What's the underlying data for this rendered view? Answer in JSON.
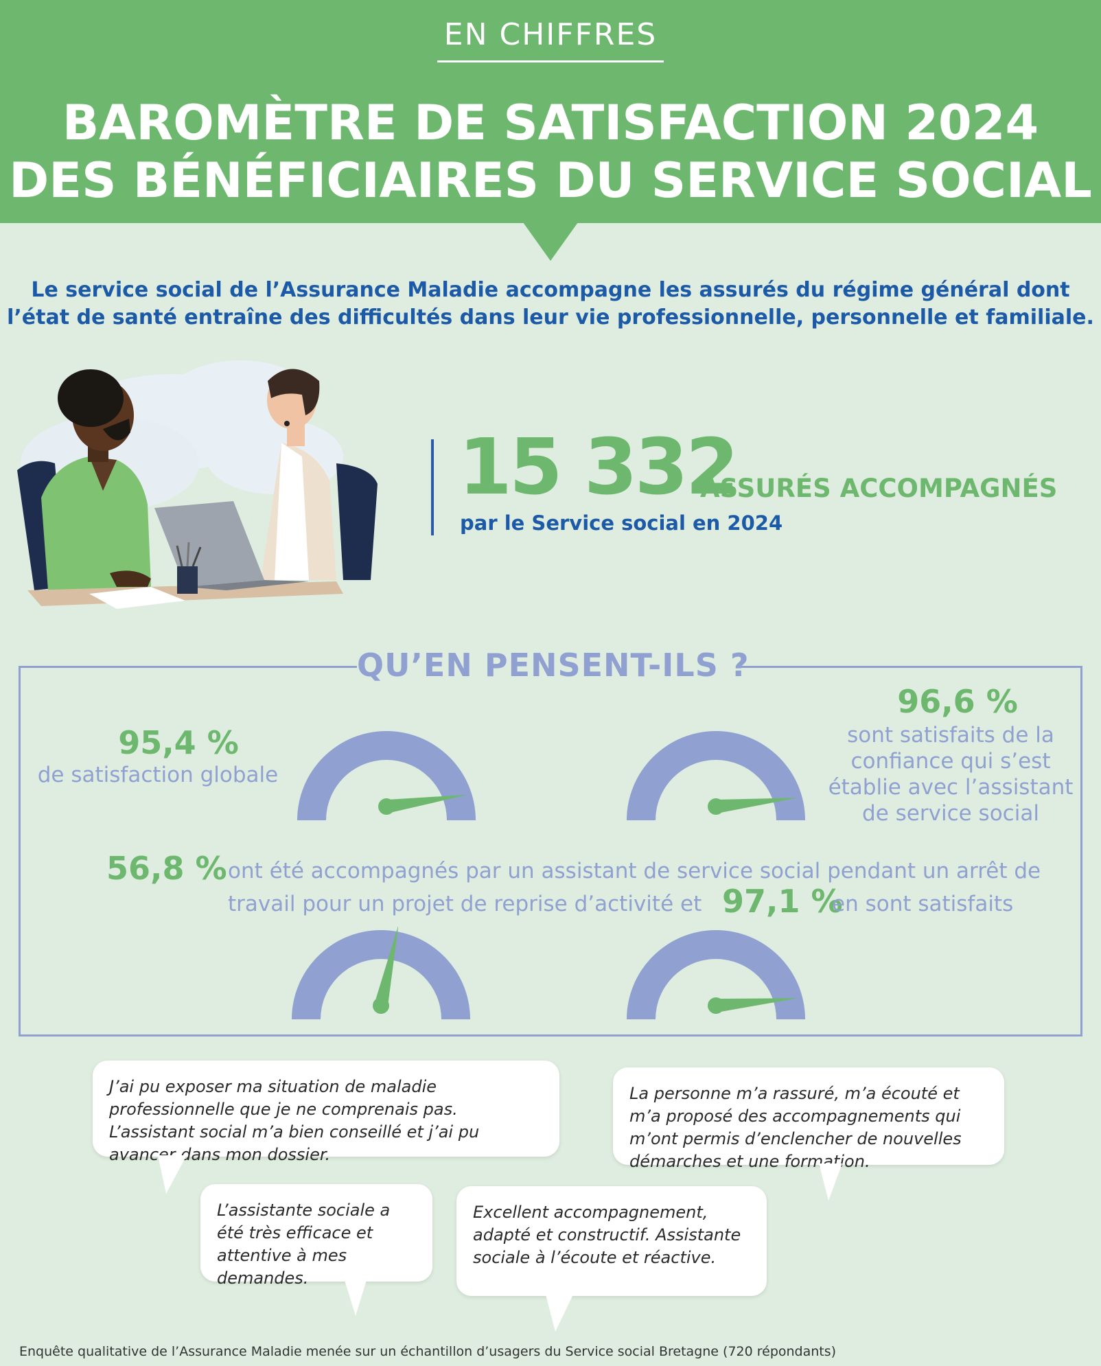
{
  "header": {
    "kicker": "EN CHIFFRES",
    "title_line1": "BAROMÈTRE DE SATISFACTION 2024",
    "title_line2": "DES BÉNÉFICIAIRES DU SERVICE SOCIAL"
  },
  "intro": {
    "line1": "Le service social de l’Assurance Maladie accompagne les assurés du régime général dont",
    "line2": "l’état de santé entraîne des difficultés dans leur vie professionnelle, personnelle et familiale."
  },
  "key_stat": {
    "number": "15 332",
    "unit": "ASSURÉS ACCOMPAGNÉS",
    "sub": "par le Service social en 2024"
  },
  "opinions": {
    "title": "QU’EN PENSENT-ILS ?",
    "stat1": {
      "pct": "95,4 %",
      "desc": "de satisfaction globale",
      "value": 95.4
    },
    "stat2": {
      "pct": "96,6 %",
      "desc": "sont satisfaits de la confiance qui s’est établie avec l’assistant de service social",
      "value": 96.6
    },
    "stat3": {
      "pct": "56,8 %",
      "line1": "ont été accompagnés par un assistant de service social pendant un arrêt de",
      "line2": "travail pour un projet de reprise d’activité et",
      "value": 56.8
    },
    "stat4": {
      "pct": "97,1 %",
      "desc": "en sont satisfaits",
      "value": 97.1
    }
  },
  "quotes": {
    "q1": "J’ai pu exposer ma situation de maladie professionnelle que je ne comprenais pas. L’assistant social m’a bien conseillé et j’ai pu avancer dans mon dossier.",
    "q2": "La personne m’a rassuré, m’a écouté et m’a proposé des accompagnements qui m’ont permis d’enclencher de nouvelles démarches et une formation.",
    "q3": "L’assistante sociale a été très efficace et attentive à mes demandes.",
    "q4": "Excellent accompagnement, adapté et constructif. Assistante sociale à l’écoute et réactive."
  },
  "footer": "Enquête qualitative de l’Assurance Maladie menée sur un échantillon d’usagers du Service social Bretagne (720 répondants)",
  "colors": {
    "green": "#6db86e",
    "blue": "#1c5aa8",
    "lavender": "#8fa0d1",
    "background": "#deeddf"
  }
}
